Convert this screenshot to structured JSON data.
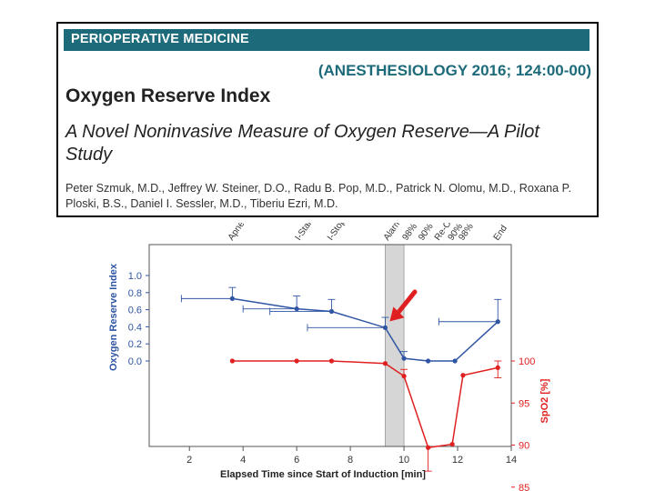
{
  "paper": {
    "section": "PERIOPERATIVE MEDICINE",
    "citation": "(ANESTHESIOLOGY 2016; 124:00-00)",
    "title": "Oxygen Reserve Index",
    "subtitle": "A Novel Noninvasive Measure of Oxygen Reserve—A Pilot Study",
    "authors": "Peter Szmuk, M.D., Jeffrey W. Steiner, D.O., Radu B. Pop, M.D., Patrick N. Olomu, M.D., Roxana P. Ploski, B.S., Daniel I. Sessler, M.D., Tiberiu Ezri, M.D."
  },
  "colors": {
    "section_bar": "#1d6b7a",
    "ori_series": "#2f55a4",
    "spo2_series": "#e02020",
    "shaded_band": "#d6d6d6",
    "arrow": "#e02020"
  },
  "chart_data": {
    "type": "line",
    "xlabel": "Elapsed Time since Start of Induction [min]",
    "xlim": [
      0.5,
      14
    ],
    "xticks": [
      2,
      4,
      6,
      8,
      10,
      12,
      14
    ],
    "shaded_band": [
      9.3,
      10
    ],
    "left_axis": {
      "label": "Oxygen Reserve Index",
      "ticks": [
        "1.0",
        "0.8",
        "0.6",
        "0.4",
        "0.2",
        "0.0"
      ],
      "range": [
        0.0,
        1.0
      ]
    },
    "right_axis": {
      "label": "SpO2 [%]",
      "ticks": [
        "100",
        "95",
        "90",
        "85"
      ],
      "range": [
        85,
        100
      ]
    },
    "event_labels": [
      {
        "text": "Apnea",
        "x": 3.6
      },
      {
        "text": "I-Start",
        "x": 6.1
      },
      {
        "text": "I-Stop",
        "x": 7.3
      },
      {
        "text": "Alarm",
        "x": 9.4
      },
      {
        "text": "98%",
        "x": 10.1
      },
      {
        "text": "90%",
        "x": 10.7
      },
      {
        "text": "Re-Ox",
        "x": 11.3
      },
      {
        "text": "90%",
        "x": 11.8
      },
      {
        "text": "98%",
        "x": 12.2
      },
      {
        "text": "End",
        "x": 13.5
      }
    ],
    "series": [
      {
        "axis": "left",
        "points": [
          {
            "x": 3.6,
            "y": 0.73,
            "xerr": [
              1.9,
              0
            ],
            "yerr": [
              0,
              0.13
            ]
          },
          {
            "x": 6.0,
            "y": 0.61,
            "xerr": [
              2.0,
              0
            ],
            "yerr": [
              0,
              0.15
            ]
          },
          {
            "x": 7.3,
            "y": 0.58,
            "xerr": [
              2.3,
              0
            ],
            "yerr": [
              0,
              0.14
            ]
          },
          {
            "x": 9.3,
            "y": 0.39,
            "xerr": [
              2.9,
              0
            ],
            "yerr": [
              0,
              0.12
            ]
          },
          {
            "x": 10.0,
            "y": 0.03,
            "xerr": [
              0,
              0
            ],
            "yerr": [
              0,
              0.08
            ]
          },
          {
            "x": 10.9,
            "y": 0.0,
            "xerr": [
              0,
              0
            ],
            "yerr": [
              0,
              0
            ]
          },
          {
            "x": 11.9,
            "y": 0.0,
            "xerr": [
              0,
              0
            ],
            "yerr": [
              0,
              0
            ]
          },
          {
            "x": 13.5,
            "y": 0.46,
            "xerr": [
              2.2,
              0
            ],
            "yerr": [
              0,
              0.26
            ]
          }
        ]
      },
      {
        "axis": "right",
        "points": [
          {
            "x": 3.6,
            "y": 100,
            "yerr": [
              0,
              0
            ]
          },
          {
            "x": 6.0,
            "y": 100,
            "yerr": [
              0,
              0
            ]
          },
          {
            "x": 7.3,
            "y": 100,
            "yerr": [
              0,
              0
            ]
          },
          {
            "x": 9.3,
            "y": 99.7,
            "yerr": [
              0,
              0
            ]
          },
          {
            "x": 10.0,
            "y": 98.2,
            "yerr": [
              0,
              0.8
            ]
          },
          {
            "x": 10.9,
            "y": 89.7,
            "yerr": [
              2.8,
              0
            ]
          },
          {
            "x": 11.8,
            "y": 90.1,
            "yerr": [
              0,
              0
            ]
          },
          {
            "x": 12.2,
            "y": 98.3,
            "yerr": [
              0,
              0
            ]
          },
          {
            "x": 13.5,
            "y": 99.2,
            "yerr": [
              1.2,
              0.8
            ]
          }
        ]
      }
    ],
    "annotation": {
      "type": "arrow",
      "points_to_x": 9.3
    }
  }
}
